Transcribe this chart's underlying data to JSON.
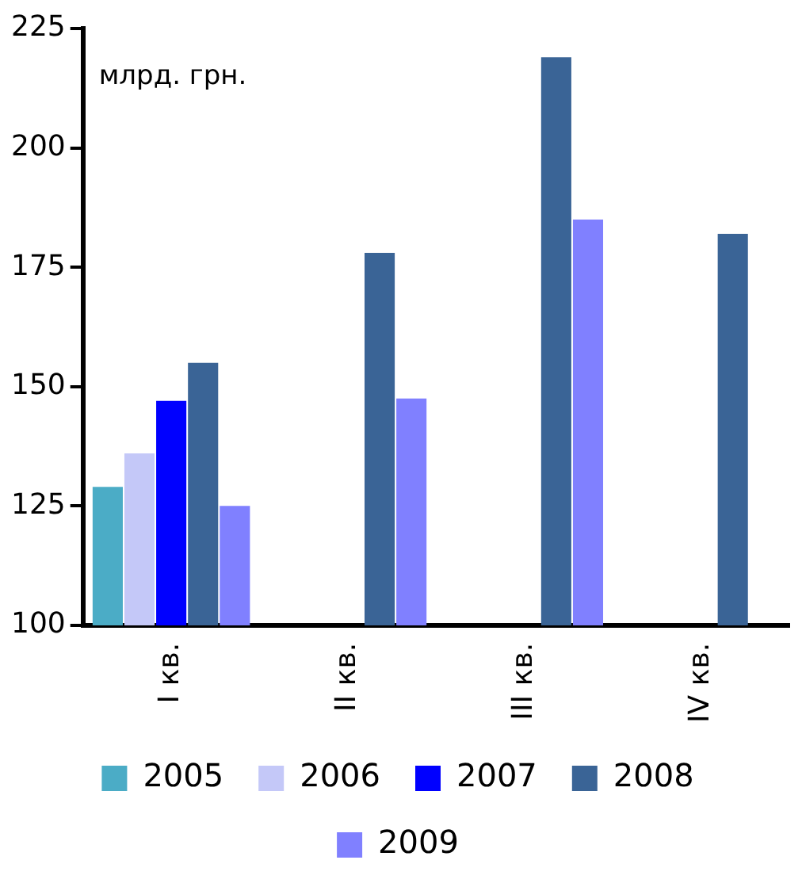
{
  "chart_data": {
    "type": "bar",
    "ylabel": "млрд. грн.",
    "categories": [
      "I кв.",
      "II кв.",
      "III кв.",
      "IV кв."
    ],
    "series": [
      {
        "name": "2005",
        "color": "#4bacc6",
        "values": [
          129,
          null,
          null,
          null
        ]
      },
      {
        "name": "2006",
        "color": "#c4c8f8",
        "values": [
          136,
          null,
          null,
          null
        ]
      },
      {
        "name": "2007",
        "color": "#0000ff",
        "values": [
          147,
          null,
          null,
          null
        ]
      },
      {
        "name": "2008",
        "color": "#3a6496",
        "values": [
          155,
          178,
          219,
          182
        ]
      },
      {
        "name": "2009",
        "color": "#8080ff",
        "values": [
          125,
          147.5,
          185,
          null
        ]
      }
    ],
    "ylim": [
      100,
      225
    ],
    "yticks": [
      100,
      125,
      150,
      175,
      200,
      225
    ],
    "grid": false,
    "legend": "bottom"
  }
}
